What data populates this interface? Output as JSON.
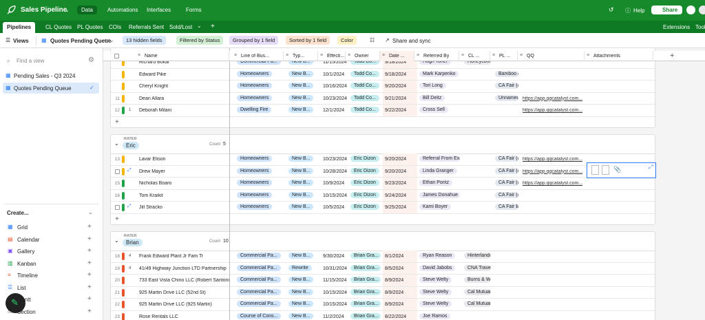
{
  "header": {
    "app_name": "Sales Pipeline",
    "nav": [
      "Data",
      "Automations",
      "Interfaces",
      "Forms"
    ],
    "help": "Help",
    "share": "Share"
  },
  "tabs": {
    "items": [
      "Pipelines",
      "CL Quotes",
      "PL Quotes",
      "COIs",
      "Referrals Sent",
      "Sold/Lost"
    ],
    "extensions": "Extensions",
    "tools": "Tools"
  },
  "toolbar": {
    "views": "Views",
    "view_name": "Quotes Pending Queue",
    "buttons": [
      "13 hidden fields",
      "Filtered by Status",
      "Grouped by 1 field",
      "Sorted by 1 field",
      "Color"
    ],
    "share": "Share and sync"
  },
  "sidebar": {
    "search": "Find a view",
    "views": [
      "Pending Sales - Q3 2024",
      "Quotes Pending Queue"
    ],
    "create": "Create...",
    "create_items": [
      "Grid",
      "Calendar",
      "Gallery",
      "Kanban",
      "Timeline",
      "List",
      "Gantt",
      "Section"
    ]
  },
  "grid": {
    "columns": [
      "Name",
      "Line of Bus...",
      "Typ...",
      "Effecti...",
      "Owner",
      "Date ...",
      "Referred By",
      "CL ...",
      "PL ...",
      "QQ",
      "Attachments"
    ],
    "groups": [
      {
        "rows": [
          {
            "number": null,
            "color": "#f5b400",
            "cells": [
              "Richard Bokar",
              "Commercial Pa...",
              "New B...",
              "11/15/2024",
              "Todd Co...",
              "9/18/2024",
              "Hugh Toner",
              "Honeycomb...",
              null,
              null
            ]
          },
          {
            "number": null,
            "color": "#f5b400",
            "cells": [
              "Edward Pike",
              "Homeowners",
              "New B...",
              "10/1/2024",
              "Todd Co...",
              "9/18/2024",
              "Mark Karpenko",
              null,
              "Bamboo (A...",
              null
            ]
          },
          {
            "number": null,
            "color": "#f5b400",
            "cells": [
              "Cheryl Knight",
              "Homeowners",
              "New B...",
              "10/16/2024",
              "Todd Co...",
              "9/20/2024",
              "Tori Long",
              null,
              "CA Fair (Ind...",
              null
            ]
          },
          {
            "number": "11",
            "color": "#f5b400",
            "cells": [
              "Dean Allara",
              "Homeowners",
              "New B...",
              "10/23/2024",
              "Todd Co...",
              "9/21/2024",
              "Bill Deitz",
              null,
              "Unnamed r...",
              "https://app.qqcatalyst.com..."
            ]
          },
          {
            "number": "12",
            "color": "#20a34a",
            "comments": "1",
            "cells": [
              "Deborah Milani",
              "Dwelling Fire",
              "New B...",
              "12/1/2024",
              "Todd Co...",
              "9/22/2024",
              "Cross Sell",
              null,
              null,
              "https://app.qqcatalyst.com..."
            ]
          }
        ]
      },
      {
        "field": "RATER",
        "value": "Eric",
        "count_label": "Count",
        "count": 5,
        "rows": [
          {
            "number": "13",
            "color": "#f5b400",
            "cells": [
              "Lavar Elison",
              "Homeowners",
              "New B...",
              "10/23/2024",
              "Eric Dizon",
              "9/20/2024",
              "Referral From Exis...",
              null,
              "CA Fair (Ind...",
              "https://app.qqcatalyst.com..."
            ]
          },
          {
            "number": null,
            "selected": true,
            "color": "#f5b400",
            "cells": [
              "Drew Mayer",
              "Homeowners",
              "New B...",
              "10/28/2024",
              "Eric Dizon",
              "9/20/2024",
              "Linda Granger",
              null,
              "CA Fair (Ind...",
              "https://app.qqcatalyst.com..."
            ]
          },
          {
            "number": "15",
            "color": "#20a34a",
            "cells": [
              "Nicholas Boaro",
              "Homeowners",
              "New B...",
              "10/9/2024",
              "Eric Dizon",
              "9/23/2024",
              "Ethan Pontz",
              null,
              "CA Fair (Ind...",
              "https://app.qqcatalyst.com..."
            ]
          },
          {
            "number": "16",
            "color": "#20a34a",
            "cells": [
              "Tom Kraikit",
              "Homeowners",
              "New B...",
              "10/15/2024",
              "Eric Dizon",
              "9/24/2024",
              "James Donahue",
              null,
              "CA Fair (Ind...",
              null
            ]
          },
          {
            "number": null,
            "selected": true,
            "color": "#20a34a",
            "cells": [
              "Jill Stracko",
              "Homeowners",
              "New B...",
              "10/5/2024",
              "Eric Dizon",
              "9/25/2024",
              "Kami Boyer",
              null,
              "CA Fair  Bu...",
              null
            ]
          }
        ]
      },
      {
        "field": "RATER",
        "value": "Brian",
        "count_label": "Count",
        "count": 10,
        "rows": [
          {
            "number": "18",
            "color": "#e8552b",
            "comments": "4",
            "cells": [
              "Frank Edward Plant Jr Fam Tr",
              "Commercial Pa...",
              "New B...",
              "9/30/2024",
              "Brian Gra...",
              "8/1/2024",
              "Ryan Reason",
              "Hinterland/...",
              null,
              null
            ]
          },
          {
            "number": "19",
            "color": "#e8552b",
            "comments": "4",
            "cells": [
              "41/49 Highway Junction LTD Partnership",
              "Commercial Pa...",
              "Rewrite",
              "10/31/2024",
              "Brian Gra...",
              "8/5/2024",
              "David Jabobs",
              "CNA  Trave",
              null,
              null
            ]
          },
          {
            "number": "20",
            "color": "#e8552b",
            "cells": [
              "733 East Vista Chino LLC (Robert Santoni)",
              "Commercial Pa...",
              "New B...",
              "11/15/2024",
              "Brian Gra...",
              "8/9/2024",
              "Steve Welty",
              "Burns & Wi...",
              null,
              null
            ]
          },
          {
            "number": "21",
            "color": "#e8552b",
            "cells": [
              "925 Martin Drive LLC (52nd St)",
              "Commercial Pa...",
              "New B...",
              "10/15/2024",
              "Brian Gra...",
              "8/9/2024",
              "Steve Welty",
              "Cal Mutual",
              null,
              null
            ]
          },
          {
            "number": "22",
            "color": "#e8552b",
            "cells": [
              "925 Martin Drive LLC (925 Martin)",
              "Commercial Pa...",
              "New B...",
              "10/15/2024",
              "Brian Gra...",
              "8/9/2024",
              "Steve Welty",
              "Cal Mutual",
              null,
              null
            ]
          },
          {
            "number": "23",
            "color": "#e8552b",
            "cells": [
              "Rose Rentals LLC",
              "Course of Cons...",
              "New B...",
              "11/2/2024",
              "Brian Gra...",
              "8/22/2024",
              "Joe Ramos",
              null,
              null,
              null
            ]
          }
        ]
      }
    ]
  }
}
